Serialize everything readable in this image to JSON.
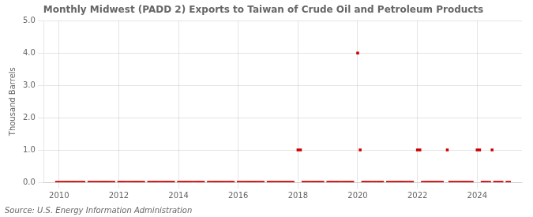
{
  "chart_data": {
    "type": "scatter",
    "title": "Monthly Midwest (PADD 2) Exports to Taiwan of Crude Oil and Petroleum Products",
    "ylabel": "Thousand Barrels",
    "annotations": [
      "Source: U.S. Energy Information Administration"
    ],
    "color": "#cc0000",
    "marker": "square",
    "grid": true,
    "xlim": [
      2009.5,
      2025.5
    ],
    "ylim": [
      0.0,
      5.0
    ],
    "xticks": [
      2010,
      2012,
      2014,
      2016,
      2018,
      2020,
      2022,
      2024
    ],
    "yticks": [
      {
        "value": 0,
        "label": "0.0"
      },
      {
        "value": 1,
        "label": "1.0"
      },
      {
        "value": 2,
        "label": "2.0"
      },
      {
        "value": 3,
        "label": "3.0"
      },
      {
        "value": 4,
        "label": "4.0"
      },
      {
        "value": 5,
        "label": "5.0"
      }
    ],
    "x": [
      2009.917,
      2010.0,
      2010.083,
      2010.167,
      2010.25,
      2010.333,
      2010.417,
      2010.5,
      2010.583,
      2010.667,
      2010.75,
      2010.833,
      2011.0,
      2011.083,
      2011.167,
      2011.25,
      2011.333,
      2011.417,
      2011.5,
      2011.583,
      2011.667,
      2011.75,
      2011.833,
      2012.0,
      2012.083,
      2012.167,
      2012.25,
      2012.333,
      2012.417,
      2012.5,
      2012.583,
      2012.667,
      2012.75,
      2012.833,
      2013.0,
      2013.083,
      2013.167,
      2013.25,
      2013.333,
      2013.417,
      2013.5,
      2013.583,
      2013.667,
      2013.75,
      2013.833,
      2014.0,
      2014.083,
      2014.167,
      2014.25,
      2014.333,
      2014.417,
      2014.5,
      2014.583,
      2014.667,
      2014.75,
      2014.833,
      2015.0,
      2015.083,
      2015.167,
      2015.25,
      2015.333,
      2015.417,
      2015.5,
      2015.583,
      2015.667,
      2015.75,
      2015.833,
      2016.0,
      2016.083,
      2016.167,
      2016.25,
      2016.333,
      2016.417,
      2016.5,
      2016.583,
      2016.667,
      2016.75,
      2016.833,
      2017.0,
      2017.083,
      2017.167,
      2017.25,
      2017.333,
      2017.417,
      2017.5,
      2017.583,
      2017.667,
      2017.75,
      2017.833,
      2018.0,
      2018.083,
      2018.167,
      2018.25,
      2018.333,
      2018.417,
      2018.5,
      2018.583,
      2018.667,
      2018.75,
      2018.833,
      2019.0,
      2019.083,
      2019.167,
      2019.25,
      2019.333,
      2019.417,
      2019.5,
      2019.583,
      2019.667,
      2019.75,
      2019.833,
      2020.0,
      2020.083,
      2020.167,
      2020.25,
      2020.333,
      2020.417,
      2020.5,
      2020.583,
      2020.667,
      2020.75,
      2020.833,
      2021.0,
      2021.083,
      2021.167,
      2021.25,
      2021.333,
      2021.417,
      2021.5,
      2021.583,
      2021.667,
      2021.75,
      2021.833,
      2022.0,
      2022.083,
      2022.167,
      2022.25,
      2022.333,
      2022.417,
      2022.5,
      2022.583,
      2022.667,
      2022.75,
      2022.833,
      2023.0,
      2023.083,
      2023.167,
      2023.25,
      2023.333,
      2023.417,
      2023.5,
      2023.583,
      2023.667,
      2023.75,
      2023.833,
      2024.0,
      2024.083,
      2024.167,
      2024.25,
      2024.333,
      2024.417,
      2024.5,
      2024.583,
      2024.667,
      2024.75,
      2024.833,
      2025.0,
      2025.083
    ],
    "values": [
      0.0,
      0.0,
      0.0,
      0.0,
      0.0,
      0.0,
      0.0,
      0.0,
      0.0,
      0.0,
      0.0,
      0.0,
      0.0,
      0.0,
      0.0,
      0.0,
      0.0,
      0.0,
      0.0,
      0.0,
      0.0,
      0.0,
      0.0,
      0.0,
      0.0,
      0.0,
      0.0,
      0.0,
      0.0,
      0.0,
      0.0,
      0.0,
      0.0,
      0.0,
      0.0,
      0.0,
      0.0,
      0.0,
      0.0,
      0.0,
      0.0,
      0.0,
      0.0,
      0.0,
      0.0,
      0.0,
      0.0,
      0.0,
      0.0,
      0.0,
      0.0,
      0.0,
      0.0,
      0.0,
      0.0,
      0.0,
      0.0,
      0.0,
      0.0,
      0.0,
      0.0,
      0.0,
      0.0,
      0.0,
      0.0,
      0.0,
      0.0,
      0.0,
      0.0,
      0.0,
      0.0,
      0.0,
      0.0,
      0.0,
      0.0,
      0.0,
      0.0,
      0.0,
      0.0,
      0.0,
      0.0,
      0.0,
      0.0,
      0.0,
      0.0,
      0.0,
      0.0,
      0.0,
      0.0,
      1.0,
      1.0,
      0.0,
      0.0,
      0.0,
      0.0,
      0.0,
      0.0,
      0.0,
      0.0,
      0.0,
      0.0,
      0.0,
      0.0,
      0.0,
      0.0,
      0.0,
      0.0,
      0.0,
      0.0,
      0.0,
      0.0,
      4.0,
      1.0,
      0.0,
      0.0,
      0.0,
      0.0,
      0.0,
      0.0,
      0.0,
      0.0,
      0.0,
      0.0,
      0.0,
      0.0,
      0.0,
      0.0,
      0.0,
      0.0,
      0.0,
      0.0,
      0.0,
      0.0,
      1.0,
      1.0,
      0.0,
      0.0,
      0.0,
      0.0,
      0.0,
      0.0,
      0.0,
      0.0,
      0.0,
      1.0,
      0.0,
      0.0,
      0.0,
      0.0,
      0.0,
      0.0,
      0.0,
      0.0,
      0.0,
      0.0,
      1.0,
      1.0,
      0.0,
      0.0,
      0.0,
      0.0,
      1.0,
      0.0,
      0.0,
      0.0,
      0.0,
      0.0,
      0.0
    ]
  }
}
